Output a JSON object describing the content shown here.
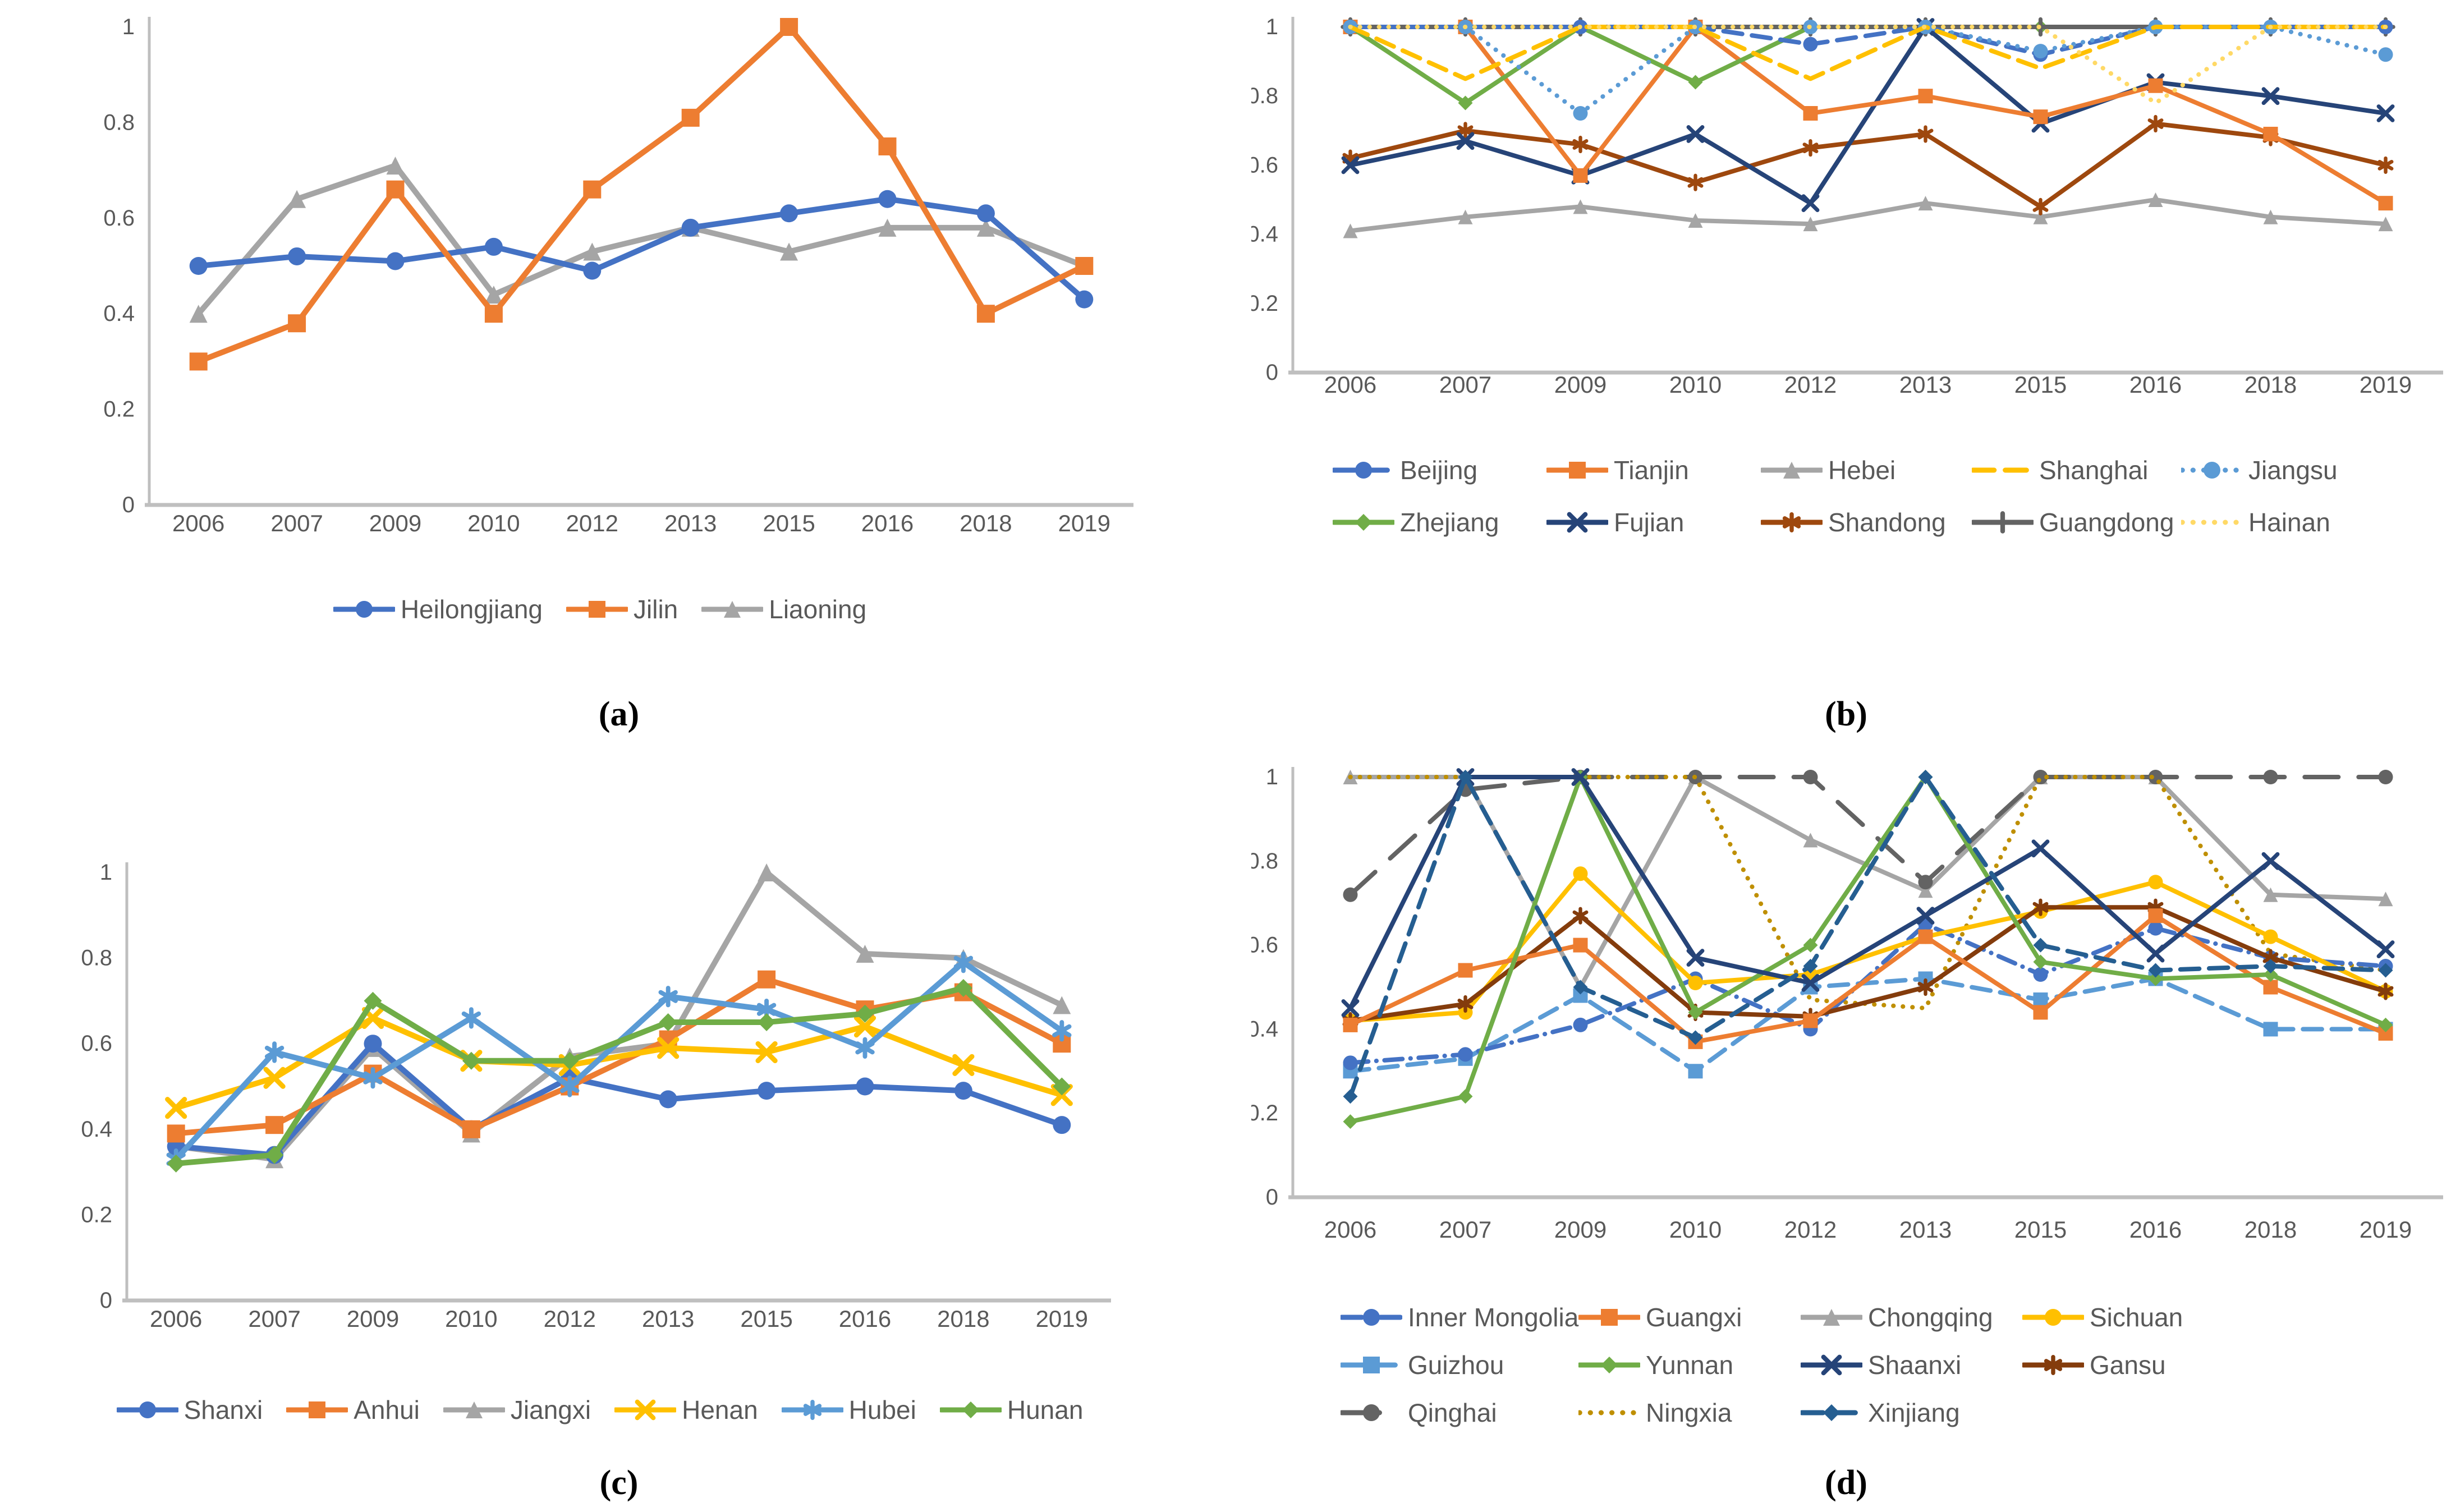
{
  "axis": {
    "y_tick_labels": [
      "1",
      "0.8",
      "0.6",
      "0.4",
      "0.2",
      "0"
    ],
    "tick_label_color": "#595959",
    "axis_line_color": "#BFBFBF"
  },
  "chart_data": [
    {
      "panel": "a",
      "caption": "(a)",
      "type": "line",
      "title": "",
      "xlabel": "",
      "ylabel": "",
      "ylim": [
        0,
        1
      ],
      "grid": false,
      "legend_position": "bottom-center",
      "categories": [
        "2006",
        "2007",
        "2009",
        "2010",
        "2012",
        "2013",
        "2015",
        "2016",
        "2018",
        "2019"
      ],
      "series": [
        {
          "name": "Liaoning",
          "color": "#A5A5A5",
          "dash": "solid",
          "marker": "triangle",
          "values": [
            0.4,
            0.64,
            0.71,
            0.44,
            0.53,
            0.58,
            0.53,
            0.58,
            0.58,
            0.5
          ]
        },
        {
          "name": "Heilongjiang",
          "color": "#4472C4",
          "dash": "solid",
          "marker": "circle",
          "values": [
            0.5,
            0.52,
            0.51,
            0.54,
            0.49,
            0.58,
            0.61,
            0.64,
            0.61,
            0.43
          ]
        },
        {
          "name": "Jilin",
          "color": "#ED7D31",
          "dash": "solid",
          "marker": "square",
          "values": [
            0.3,
            0.38,
            0.66,
            0.4,
            0.66,
            0.81,
            1.0,
            0.75,
            0.4,
            0.5
          ]
        }
      ],
      "legend_rows": [
        [
          "Heilongjiang",
          "Jilin",
          "Liaoning"
        ]
      ]
    },
    {
      "panel": "b",
      "caption": "(b)",
      "type": "line",
      "title": "",
      "xlabel": "",
      "ylabel": "",
      "ylim": [
        0,
        1
      ],
      "grid": false,
      "legend_position": "bottom-two-rows",
      "categories": [
        "2006",
        "2007",
        "2009",
        "2010",
        "2012",
        "2013",
        "2015",
        "2016",
        "2018",
        "2019"
      ],
      "series": [
        {
          "name": "Hebei",
          "color": "#A5A5A5",
          "dash": "solid",
          "marker": "triangle",
          "values": [
            0.41,
            0.45,
            0.48,
            0.44,
            0.43,
            0.49,
            0.45,
            0.5,
            0.45,
            0.43
          ]
        },
        {
          "name": "Shandong",
          "color": "#9E480E",
          "dash": "solid",
          "marker": "asterisk",
          "values": [
            0.62,
            0.7,
            0.66,
            0.55,
            0.65,
            0.69,
            0.48,
            0.72,
            0.68,
            0.6
          ]
        },
        {
          "name": "Fujian",
          "color": "#264478",
          "dash": "solid",
          "marker": "x",
          "values": [
            0.6,
            0.67,
            0.57,
            0.69,
            0.49,
            1.0,
            0.72,
            0.84,
            0.8,
            0.75
          ]
        },
        {
          "name": "Tianjin",
          "color": "#ED7D31",
          "dash": "solid",
          "marker": "square",
          "values": [
            1.0,
            1.0,
            0.57,
            1.0,
            0.75,
            0.8,
            0.74,
            0.83,
            0.69,
            0.49
          ]
        },
        {
          "name": "Zhejiang",
          "color": "#70AD47",
          "dash": "solid",
          "marker": "diamond",
          "values": [
            1.0,
            0.78,
            1.0,
            0.84,
            1.0,
            1.0,
            1.0,
            1.0,
            1.0,
            1.0
          ]
        },
        {
          "name": "Guangdong",
          "color": "#636363",
          "dash": "solid",
          "marker": "plus",
          "values": [
            1.0,
            1.0,
            1.0,
            1.0,
            1.0,
            1.0,
            1.0,
            1.0,
            1.0,
            1.0
          ]
        },
        {
          "name": "Beijing",
          "color": "#4472C4",
          "dash": "dashed",
          "marker": "circle",
          "values": [
            1.0,
            1.0,
            1.0,
            1.0,
            0.95,
            1.0,
            0.92,
            1.0,
            1.0,
            1.0
          ]
        },
        {
          "name": "Jiangsu",
          "color": "#5B9BD5",
          "dash": "dotted",
          "marker": "circle",
          "values": [
            1.0,
            1.0,
            0.75,
            1.0,
            1.0,
            1.0,
            0.93,
            1.0,
            1.0,
            0.92
          ]
        },
        {
          "name": "Shanghai",
          "color": "#FFC000",
          "dash": "dashed",
          "marker": "none",
          "values": [
            1.0,
            0.85,
            1.0,
            1.0,
            0.85,
            1.0,
            0.88,
            1.0,
            1.0,
            1.0
          ]
        },
        {
          "name": "Hainan",
          "color": "#FFD966",
          "dash": "dotted",
          "marker": "none",
          "values": [
            1.0,
            1.0,
            1.0,
            1.0,
            1.0,
            1.0,
            1.0,
            0.78,
            1.0,
            1.0
          ]
        }
      ],
      "legend_rows": [
        [
          "Beijing",
          "Tianjin",
          "Hebei",
          "Shanghai",
          "Jiangsu"
        ],
        [
          "Zhejiang",
          "Fujian",
          "Shandong",
          "Guangdong",
          "Hainan"
        ]
      ]
    },
    {
      "panel": "c",
      "caption": "(c)",
      "type": "line",
      "title": "",
      "xlabel": "",
      "ylabel": "",
      "ylim": [
        0,
        1
      ],
      "grid": false,
      "legend_position": "bottom-center",
      "categories": [
        "2006",
        "2007",
        "2009",
        "2010",
        "2012",
        "2013",
        "2015",
        "2016",
        "2018",
        "2019"
      ],
      "series": [
        {
          "name": "Jiangxi",
          "color": "#A5A5A5",
          "dash": "solid",
          "marker": "triangle",
          "values": [
            0.36,
            0.33,
            0.59,
            0.39,
            0.57,
            0.6,
            1.0,
            0.81,
            0.8,
            0.69
          ]
        },
        {
          "name": "Shanxi",
          "color": "#4472C4",
          "dash": "solid",
          "marker": "circle",
          "values": [
            0.36,
            0.34,
            0.6,
            0.4,
            0.52,
            0.47,
            0.49,
            0.5,
            0.49,
            0.41
          ]
        },
        {
          "name": "Anhui",
          "color": "#ED7D31",
          "dash": "solid",
          "marker": "square",
          "values": [
            0.39,
            0.41,
            0.53,
            0.4,
            0.5,
            0.61,
            0.75,
            0.68,
            0.72,
            0.6
          ]
        },
        {
          "name": "Henan",
          "color": "#FFC000",
          "dash": "solid",
          "marker": "x",
          "values": [
            0.45,
            0.52,
            0.66,
            0.56,
            0.55,
            0.59,
            0.58,
            0.64,
            0.55,
            0.48
          ]
        },
        {
          "name": "Hubei",
          "color": "#5B9BD5",
          "dash": "solid",
          "marker": "asterisk",
          "values": [
            0.33,
            0.58,
            0.52,
            0.66,
            0.5,
            0.71,
            0.68,
            0.59,
            0.79,
            0.63
          ]
        },
        {
          "name": "Hunan",
          "color": "#70AD47",
          "dash": "solid",
          "marker": "diamond",
          "values": [
            0.32,
            0.34,
            0.7,
            0.56,
            0.56,
            0.65,
            0.65,
            0.67,
            0.73,
            0.5
          ]
        }
      ],
      "legend_rows": [
        [
          "Shanxi",
          "Anhui",
          "Jiangxi",
          "Henan",
          "Hubei",
          "Hunan"
        ]
      ]
    },
    {
      "panel": "d",
      "caption": "(d)",
      "type": "line",
      "title": "",
      "xlabel": "",
      "ylabel": "",
      "ylim": [
        0,
        1
      ],
      "grid": false,
      "legend_position": "bottom-three-rows",
      "categories": [
        "2006",
        "2007",
        "2009",
        "2010",
        "2012",
        "2013",
        "2015",
        "2016",
        "2018",
        "2019"
      ],
      "series": [
        {
          "name": "Chongqing",
          "color": "#A5A5A5",
          "dash": "solid",
          "marker": "triangle",
          "values": [
            1.0,
            1.0,
            0.5,
            1.0,
            0.85,
            0.73,
            1.0,
            1.0,
            0.72,
            0.71
          ]
        },
        {
          "name": "Qinghai",
          "color": "#636363",
          "dash": "longdash",
          "marker": "circle",
          "values": [
            0.72,
            0.97,
            1.0,
            1.0,
            1.0,
            0.75,
            1.0,
            1.0,
            1.0,
            1.0
          ]
        },
        {
          "name": "Ningxia",
          "color": "#BF8F00",
          "dash": "dotted",
          "marker": "none",
          "values": [
            1.0,
            1.0,
            1.0,
            1.0,
            0.47,
            0.45,
            1.0,
            1.0,
            0.58,
            0.54
          ]
        },
        {
          "name": "Guizhou",
          "color": "#5B9BD5",
          "dash": "dashed",
          "marker": "square",
          "values": [
            0.3,
            0.33,
            0.48,
            0.3,
            0.5,
            0.52,
            0.47,
            0.52,
            0.4,
            0.4
          ]
        },
        {
          "name": "Inner Mongolia",
          "color": "#4472C4",
          "dash": "dashdot",
          "marker": "circle",
          "values": [
            0.32,
            0.34,
            0.41,
            0.52,
            0.4,
            0.65,
            0.53,
            0.64,
            0.57,
            0.55
          ]
        },
        {
          "name": "Sichuan",
          "color": "#FFC000",
          "dash": "solid",
          "marker": "circle",
          "values": [
            0.42,
            0.44,
            0.77,
            0.51,
            0.53,
            0.62,
            0.68,
            0.75,
            0.62,
            0.49
          ]
        },
        {
          "name": "Gansu",
          "color": "#843C0C",
          "dash": "solid",
          "marker": "asterisk",
          "values": [
            0.42,
            0.46,
            0.67,
            0.44,
            0.43,
            0.5,
            0.69,
            0.69,
            0.57,
            0.49
          ]
        },
        {
          "name": "Guangxi",
          "color": "#ED7D31",
          "dash": "solid",
          "marker": "square",
          "values": [
            0.41,
            0.54,
            0.6,
            0.37,
            0.42,
            0.62,
            0.44,
            0.67,
            0.5,
            0.39
          ]
        },
        {
          "name": "Yunnan",
          "color": "#70AD47",
          "dash": "solid",
          "marker": "diamond",
          "values": [
            0.18,
            0.24,
            1.0,
            0.44,
            0.6,
            1.0,
            0.56,
            0.52,
            0.53,
            0.41
          ]
        },
        {
          "name": "Shaanxi",
          "color": "#264478",
          "dash": "solid",
          "marker": "x",
          "values": [
            0.45,
            1.0,
            1.0,
            0.57,
            0.51,
            0.67,
            0.83,
            0.58,
            0.8,
            0.59
          ]
        },
        {
          "name": "Xinjiang",
          "color": "#255E91",
          "dash": "dashed",
          "marker": "diamond",
          "values": [
            0.24,
            1.0,
            0.5,
            0.38,
            0.55,
            1.0,
            0.6,
            0.54,
            0.55,
            0.54
          ]
        }
      ],
      "legend_rows": [
        [
          "Inner Mongolia",
          "Guangxi",
          "Chongqing",
          "Sichuan"
        ],
        [
          "Guizhou",
          "Yunnan",
          "Shaanxi",
          "Gansu"
        ],
        [
          "Qinghai",
          "Ningxia",
          "Xinjiang"
        ]
      ]
    }
  ]
}
